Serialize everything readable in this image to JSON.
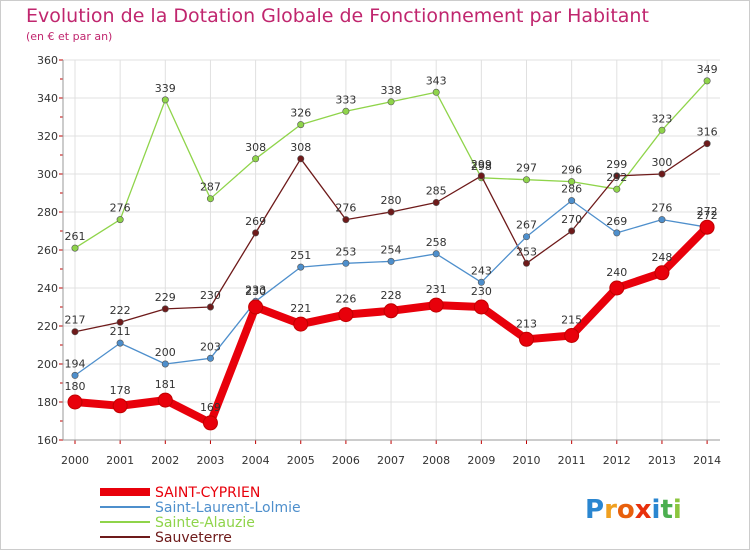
{
  "chart_data": {
    "type": "line",
    "title": "Evolution de la Dotation Globale de Fonctionnement par Habitant",
    "subtitle": "(en € et par an)",
    "xlabel": "",
    "ylabel": "",
    "x": [
      2000,
      2001,
      2002,
      2003,
      2004,
      2005,
      2006,
      2007,
      2008,
      2009,
      2010,
      2011,
      2012,
      2013,
      2014
    ],
    "ylim": [
      160,
      360
    ],
    "yticks": [
      160,
      180,
      200,
      220,
      240,
      260,
      280,
      300,
      320,
      340,
      360
    ],
    "grid": true,
    "legend_position": "bottom-left",
    "series": [
      {
        "name": "SAINT-CYPRIEN",
        "color": "#e8000b",
        "values": [
          180,
          178,
          181,
          169,
          230,
          221,
          226,
          228,
          231,
          230,
          213,
          215,
          240,
          248,
          272
        ]
      },
      {
        "name": "Saint-Laurent-Lolmie",
        "color": "#4e8fcc",
        "values": [
          194,
          211,
          200,
          203,
          233,
          251,
          253,
          254,
          258,
          243,
          267,
          286,
          269,
          276,
          272
        ]
      },
      {
        "name": "Sainte-Alauzie",
        "color": "#8fd44a",
        "values": [
          261,
          276,
          339,
          287,
          308,
          326,
          333,
          338,
          343,
          298,
          297,
          296,
          292,
          323,
          349
        ]
      },
      {
        "name": "Sauveterre",
        "color": "#6e1a1a",
        "values": [
          217,
          222,
          229,
          230,
          269,
          308,
          276,
          280,
          285,
          299,
          253,
          270,
          299,
          300,
          316
        ]
      }
    ]
  },
  "brand": {
    "letters": [
      "P",
      "r",
      "o",
      "x",
      "i",
      "t",
      "i"
    ],
    "colors": [
      "#2a86d0",
      "#f0a020",
      "#e8600c",
      "#e8300c",
      "#2a86d0",
      "#4caf50",
      "#8cc63f"
    ]
  }
}
